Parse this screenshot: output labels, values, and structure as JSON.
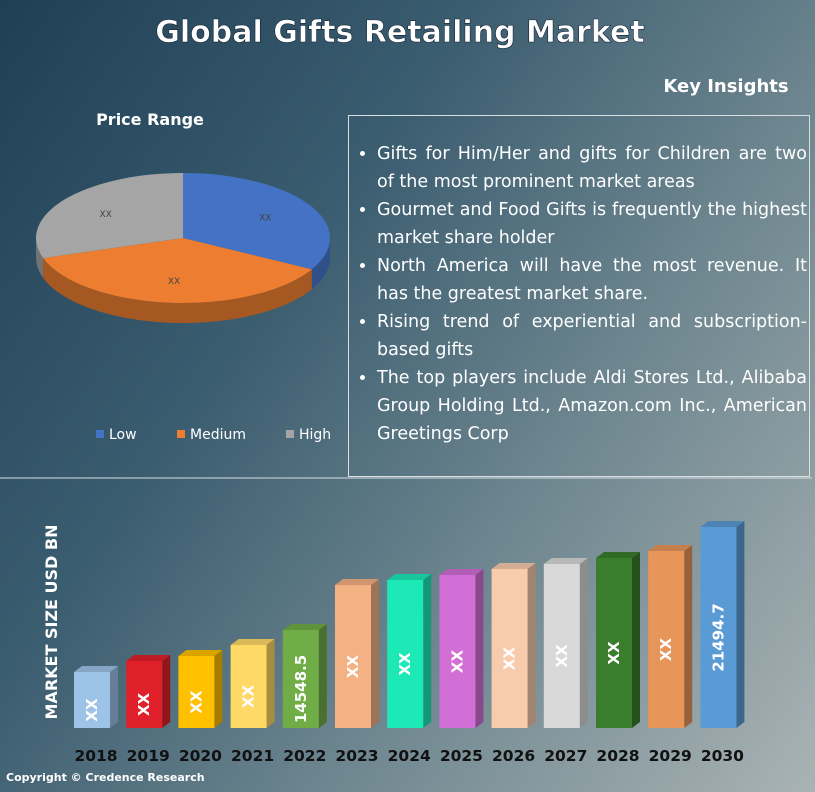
{
  "title": "Global Gifts Retailing Market",
  "key_insights": {
    "heading": "Key Insights",
    "items": [
      "Gifts for Him/Her and gifts for Children are two of the most prominent market areas",
      "Gourmet and Food Gifts is frequently the highest market share holder",
      "North America will have the most revenue. It has the greatest market share.",
      "Rising trend of experiential and subscription-based gifts",
      "The top players include Aldi Stores Ltd., Alibaba Group Holding Ltd., Amazon.com Inc., American Greetings Corp"
    ]
  },
  "copyright": "Copyright © Credence Research",
  "chart_data": [
    {
      "type": "pie",
      "title": "Price Range",
      "categories": [
        "Low",
        "Medium",
        "High"
      ],
      "values": [
        33,
        37,
        30
      ],
      "value_labels": [
        "XX",
        "XX",
        "XX"
      ],
      "colors": [
        "#4472c4",
        "#ed7d31",
        "#a5a5a5"
      ],
      "legend": "bottom"
    },
    {
      "type": "bar",
      "y_label": "MARKET SIZE USD BN",
      "categories": [
        "2018",
        "2019",
        "2020",
        "2021",
        "2022",
        "2023",
        "2024",
        "2025",
        "2026",
        "2027",
        "2028",
        "2029",
        "2030"
      ],
      "values": [
        11716,
        12458,
        12795,
        13537,
        14548.5,
        17583,
        17920,
        18257,
        18662,
        19000,
        19404,
        19876,
        21494.7
      ],
      "value_labels": [
        "XX",
        "XX",
        "XX",
        "XX",
        "14548.5",
        "XX",
        "XX",
        "XX",
        "XX",
        "XX",
        "XX",
        "XX",
        "21494.7"
      ],
      "colors": [
        "#9dc3e6",
        "#e0202a",
        "#ffc000",
        "#ffd966",
        "#70ad47",
        "#f4b183",
        "#1de9b6",
        "#d26fd6",
        "#f8cbad",
        "#d9d9d9",
        "#3a7d2c",
        "#e8955a",
        "#5b9bd5"
      ]
    }
  ]
}
